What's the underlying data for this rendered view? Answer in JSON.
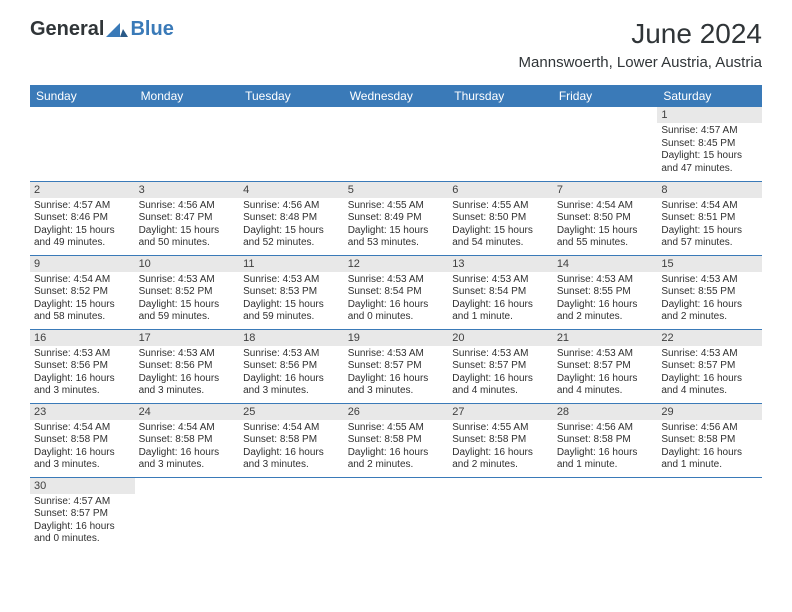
{
  "logo": {
    "word1": "General",
    "word2": "Blue",
    "triangle_color": "#3a7ab8",
    "text1_color": "#303538"
  },
  "title": "June 2024",
  "location": "Mannswoerth, Lower Austria, Austria",
  "colors": {
    "header_bg": "#3a7ab8",
    "header_text": "#ffffff",
    "daynum_bg": "#e8e8e8",
    "row_divider": "#3a7ab8",
    "body_text": "#303030"
  },
  "fonts": {
    "title_size": 28,
    "location_size": 15,
    "header_size": 12,
    "daynum_size": 11,
    "body_size": 10
  },
  "days_of_week": [
    "Sunday",
    "Monday",
    "Tuesday",
    "Wednesday",
    "Thursday",
    "Friday",
    "Saturday"
  ],
  "weeks": [
    [
      null,
      null,
      null,
      null,
      null,
      null,
      {
        "n": "1",
        "sunrise": "Sunrise: 4:57 AM",
        "sunset": "Sunset: 8:45 PM",
        "daylight": "Daylight: 15 hours and 47 minutes."
      }
    ],
    [
      {
        "n": "2",
        "sunrise": "Sunrise: 4:57 AM",
        "sunset": "Sunset: 8:46 PM",
        "daylight": "Daylight: 15 hours and 49 minutes."
      },
      {
        "n": "3",
        "sunrise": "Sunrise: 4:56 AM",
        "sunset": "Sunset: 8:47 PM",
        "daylight": "Daylight: 15 hours and 50 minutes."
      },
      {
        "n": "4",
        "sunrise": "Sunrise: 4:56 AM",
        "sunset": "Sunset: 8:48 PM",
        "daylight": "Daylight: 15 hours and 52 minutes."
      },
      {
        "n": "5",
        "sunrise": "Sunrise: 4:55 AM",
        "sunset": "Sunset: 8:49 PM",
        "daylight": "Daylight: 15 hours and 53 minutes."
      },
      {
        "n": "6",
        "sunrise": "Sunrise: 4:55 AM",
        "sunset": "Sunset: 8:50 PM",
        "daylight": "Daylight: 15 hours and 54 minutes."
      },
      {
        "n": "7",
        "sunrise": "Sunrise: 4:54 AM",
        "sunset": "Sunset: 8:50 PM",
        "daylight": "Daylight: 15 hours and 55 minutes."
      },
      {
        "n": "8",
        "sunrise": "Sunrise: 4:54 AM",
        "sunset": "Sunset: 8:51 PM",
        "daylight": "Daylight: 15 hours and 57 minutes."
      }
    ],
    [
      {
        "n": "9",
        "sunrise": "Sunrise: 4:54 AM",
        "sunset": "Sunset: 8:52 PM",
        "daylight": "Daylight: 15 hours and 58 minutes."
      },
      {
        "n": "10",
        "sunrise": "Sunrise: 4:53 AM",
        "sunset": "Sunset: 8:52 PM",
        "daylight": "Daylight: 15 hours and 59 minutes."
      },
      {
        "n": "11",
        "sunrise": "Sunrise: 4:53 AM",
        "sunset": "Sunset: 8:53 PM",
        "daylight": "Daylight: 15 hours and 59 minutes."
      },
      {
        "n": "12",
        "sunrise": "Sunrise: 4:53 AM",
        "sunset": "Sunset: 8:54 PM",
        "daylight": "Daylight: 16 hours and 0 minutes."
      },
      {
        "n": "13",
        "sunrise": "Sunrise: 4:53 AM",
        "sunset": "Sunset: 8:54 PM",
        "daylight": "Daylight: 16 hours and 1 minute."
      },
      {
        "n": "14",
        "sunrise": "Sunrise: 4:53 AM",
        "sunset": "Sunset: 8:55 PM",
        "daylight": "Daylight: 16 hours and 2 minutes."
      },
      {
        "n": "15",
        "sunrise": "Sunrise: 4:53 AM",
        "sunset": "Sunset: 8:55 PM",
        "daylight": "Daylight: 16 hours and 2 minutes."
      }
    ],
    [
      {
        "n": "16",
        "sunrise": "Sunrise: 4:53 AM",
        "sunset": "Sunset: 8:56 PM",
        "daylight": "Daylight: 16 hours and 3 minutes."
      },
      {
        "n": "17",
        "sunrise": "Sunrise: 4:53 AM",
        "sunset": "Sunset: 8:56 PM",
        "daylight": "Daylight: 16 hours and 3 minutes."
      },
      {
        "n": "18",
        "sunrise": "Sunrise: 4:53 AM",
        "sunset": "Sunset: 8:56 PM",
        "daylight": "Daylight: 16 hours and 3 minutes."
      },
      {
        "n": "19",
        "sunrise": "Sunrise: 4:53 AM",
        "sunset": "Sunset: 8:57 PM",
        "daylight": "Daylight: 16 hours and 3 minutes."
      },
      {
        "n": "20",
        "sunrise": "Sunrise: 4:53 AM",
        "sunset": "Sunset: 8:57 PM",
        "daylight": "Daylight: 16 hours and 4 minutes."
      },
      {
        "n": "21",
        "sunrise": "Sunrise: 4:53 AM",
        "sunset": "Sunset: 8:57 PM",
        "daylight": "Daylight: 16 hours and 4 minutes."
      },
      {
        "n": "22",
        "sunrise": "Sunrise: 4:53 AM",
        "sunset": "Sunset: 8:57 PM",
        "daylight": "Daylight: 16 hours and 4 minutes."
      }
    ],
    [
      {
        "n": "23",
        "sunrise": "Sunrise: 4:54 AM",
        "sunset": "Sunset: 8:58 PM",
        "daylight": "Daylight: 16 hours and 3 minutes."
      },
      {
        "n": "24",
        "sunrise": "Sunrise: 4:54 AM",
        "sunset": "Sunset: 8:58 PM",
        "daylight": "Daylight: 16 hours and 3 minutes."
      },
      {
        "n": "25",
        "sunrise": "Sunrise: 4:54 AM",
        "sunset": "Sunset: 8:58 PM",
        "daylight": "Daylight: 16 hours and 3 minutes."
      },
      {
        "n": "26",
        "sunrise": "Sunrise: 4:55 AM",
        "sunset": "Sunset: 8:58 PM",
        "daylight": "Daylight: 16 hours and 2 minutes."
      },
      {
        "n": "27",
        "sunrise": "Sunrise: 4:55 AM",
        "sunset": "Sunset: 8:58 PM",
        "daylight": "Daylight: 16 hours and 2 minutes."
      },
      {
        "n": "28",
        "sunrise": "Sunrise: 4:56 AM",
        "sunset": "Sunset: 8:58 PM",
        "daylight": "Daylight: 16 hours and 1 minute."
      },
      {
        "n": "29",
        "sunrise": "Sunrise: 4:56 AM",
        "sunset": "Sunset: 8:58 PM",
        "daylight": "Daylight: 16 hours and 1 minute."
      }
    ],
    [
      {
        "n": "30",
        "sunrise": "Sunrise: 4:57 AM",
        "sunset": "Sunset: 8:57 PM",
        "daylight": "Daylight: 16 hours and 0 minutes."
      },
      null,
      null,
      null,
      null,
      null,
      null
    ]
  ]
}
